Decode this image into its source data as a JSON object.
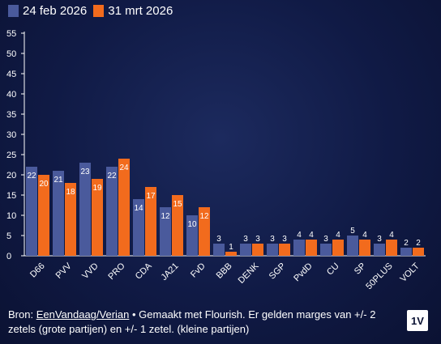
{
  "chart_data": {
    "type": "bar",
    "categories": [
      "D66",
      "PVV",
      "VVD",
      "PRO",
      "CDA",
      "JA21",
      "FvD",
      "BBB",
      "DENK",
      "SGP",
      "PvdD",
      "CU",
      "SP",
      "50PLUS",
      "VOLT"
    ],
    "series": [
      {
        "name": "24 feb 2026",
        "color": "#4a5a9c",
        "values": [
          22,
          21,
          23,
          22,
          14,
          12,
          10,
          3,
          3,
          3,
          4,
          3,
          5,
          3,
          2
        ]
      },
      {
        "name": "31 mrt 2026",
        "color": "#f26b1d",
        "values": [
          20,
          18,
          19,
          24,
          17,
          15,
          12,
          1,
          3,
          3,
          4,
          4,
          4,
          4,
          2
        ]
      }
    ],
    "ylim": [
      0,
      55
    ],
    "yticks": [
      0,
      5,
      10,
      15,
      20,
      25,
      30,
      35,
      40,
      45,
      50,
      55
    ],
    "grid": false,
    "legend": "top-left"
  },
  "legend": {
    "items": [
      {
        "label": "24 feb 2026",
        "color": "#4a5a9c"
      },
      {
        "label": "31 mrt 2026",
        "color": "#f26b1d"
      }
    ]
  },
  "footer": {
    "source_prefix": "Bron: ",
    "source_link": "EenVandaag/Verian",
    "source_rest": " • Gemaakt met Flourish. Er gelden marges van +/- 2 zetels (grote partijen) en +/- 1 zetel. (kleine partijen)"
  },
  "logo": {
    "text": "1V"
  }
}
